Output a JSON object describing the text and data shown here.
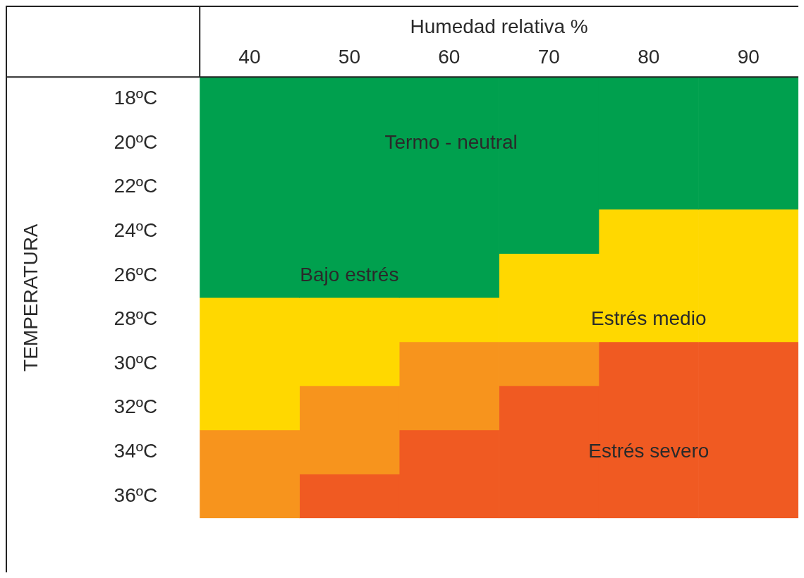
{
  "chart_data": {
    "type": "bar",
    "xlabel": "Humedad relativa %",
    "ylabel": "TEMPERATURA",
    "categories": [
      "40",
      "50",
      "60",
      "70",
      "80",
      "90"
    ],
    "ylim": [
      37,
      17
    ],
    "yticks": [
      {
        "value": 18,
        "label": "18ºC"
      },
      {
        "value": 20,
        "label": "20ºC"
      },
      {
        "value": 22,
        "label": "22ºC"
      },
      {
        "value": 24,
        "label": "24ºC"
      },
      {
        "value": 26,
        "label": "26ºC"
      },
      {
        "value": 28,
        "label": "28ºC"
      },
      {
        "value": 30,
        "label": "30ºC"
      },
      {
        "value": 32,
        "label": "32ºC"
      },
      {
        "value": 34,
        "label": "34ºC"
      },
      {
        "value": 36,
        "label": "36ºC"
      }
    ],
    "series": [
      {
        "color": "#00a04e",
        "base": [
          17,
          17,
          17,
          17,
          17,
          17
        ],
        "values": [
          10,
          10,
          10,
          8,
          6,
          6
        ]
      },
      {
        "color": "#ffd800",
        "base": [
          27,
          27,
          27,
          25,
          23,
          23
        ],
        "values": [
          6,
          4,
          2,
          4,
          6,
          6
        ]
      },
      {
        "color": "#f7941d",
        "base": [
          33,
          31,
          29,
          29,
          null,
          null
        ],
        "values": [
          4,
          4,
          4,
          2,
          null,
          null
        ]
      },
      {
        "color": "#f05a22",
        "base": [
          null,
          35,
          33,
          31,
          29,
          29
        ],
        "values": [
          null,
          2,
          4,
          6,
          8,
          8
        ]
      }
    ],
    "annotations": [
      "Termo - neutral",
      "Bajo estrés",
      "Estrés medio",
      "Estrés severo"
    ]
  }
}
